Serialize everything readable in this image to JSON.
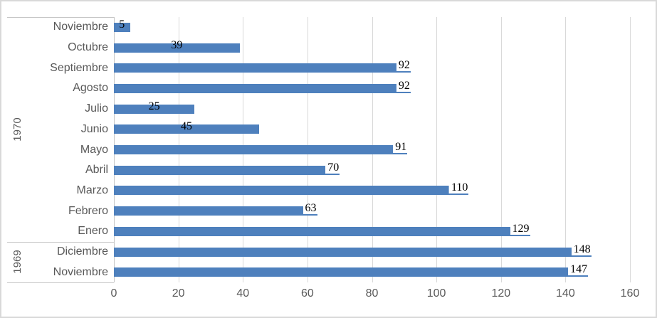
{
  "chart_data": {
    "type": "bar",
    "orientation": "horizontal",
    "title": "",
    "legend": false,
    "grid": true,
    "value_axis": {
      "min": 0,
      "max": 160,
      "step": 20,
      "ticks": [
        0,
        20,
        40,
        60,
        80,
        100,
        120,
        140,
        160
      ]
    },
    "category_axis": {
      "groups": [
        {
          "label": "1970",
          "rows": [
            {
              "month": "Noviembre",
              "value": 5,
              "label_pos": "center"
            },
            {
              "month": "Octubre",
              "value": 39,
              "label_pos": "center"
            },
            {
              "month": "Septiembre",
              "value": 92,
              "label_pos": "end"
            },
            {
              "month": "Agosto",
              "value": 92,
              "label_pos": "end"
            },
            {
              "month": "Julio",
              "value": 25,
              "label_pos": "center"
            },
            {
              "month": "Junio",
              "value": 45,
              "label_pos": "center"
            },
            {
              "month": "Mayo",
              "value": 91,
              "label_pos": "end"
            },
            {
              "month": "Abril",
              "value": 70,
              "label_pos": "end"
            },
            {
              "month": "Marzo",
              "value": 110,
              "label_pos": "end"
            },
            {
              "month": "Febrero",
              "value": 63,
              "label_pos": "end"
            },
            {
              "month": "Enero",
              "value": 129,
              "label_pos": "end"
            }
          ]
        },
        {
          "label": "1969",
          "rows": [
            {
              "month": "Diciembre",
              "value": 148,
              "label_pos": "end"
            },
            {
              "month": "Noviembre",
              "value": 147,
              "label_pos": "end"
            }
          ]
        }
      ]
    },
    "colors": {
      "bar": "#4E80BD",
      "gridline": "#D9D9D9",
      "axis_line": "#C6C6C6",
      "tick_text": "#595959",
      "category_text": "#595959",
      "data_label_text": "#000000",
      "data_label_bg": "#FFFFFF",
      "chart_border": "#D9D9D9",
      "background": "#FFFFFF"
    }
  }
}
